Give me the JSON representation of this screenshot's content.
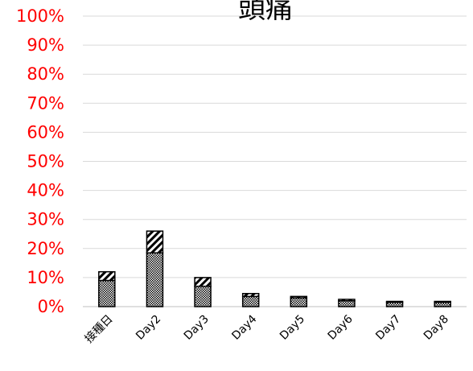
{
  "chart_data": {
    "type": "bar",
    "stacked": true,
    "title": "頭痛",
    "xlabel": "",
    "ylabel": "",
    "categories": [
      "接種日",
      "Day2",
      "Day3",
      "Day4",
      "Day5",
      "Day6",
      "Day7",
      "Day8"
    ],
    "series": [
      {
        "pattern": "dotted",
        "values": [
          9.0,
          18.5,
          7.0,
          3.5,
          3.0,
          2.0,
          1.5,
          1.5
        ]
      },
      {
        "pattern": "diagonal-hatch",
        "values": [
          3.0,
          7.5,
          3.0,
          1.0,
          0.5,
          0.5,
          0.3,
          0.3
        ]
      }
    ],
    "ylim": [
      0,
      100
    ],
    "yticks": [
      "0%",
      "10%",
      "20%",
      "30%",
      "40%",
      "50%",
      "60%",
      "70%",
      "80%",
      "90%",
      "100%"
    ],
    "grid": true,
    "legend": "none",
    "colors": {
      "tick_label": "#ff0000",
      "gridline": "#d9d9d9",
      "bar_outline": "#000000"
    }
  }
}
